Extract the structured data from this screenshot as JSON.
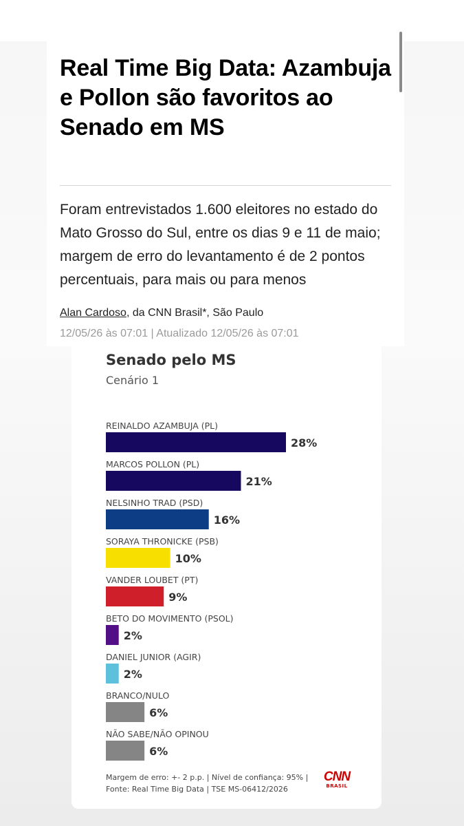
{
  "article": {
    "headline": "Real Time Big Data: Azambuja e Pollon são favoritos ao Senado em MS",
    "summary": "Foram entrevistados 1.600 eleitores no estado do Mato Grosso do Sul, entre os dias 9 e 11 de maio; margem de erro do levantamento é de 2 pontos percentuais, para mais ou para menos",
    "author": "Alan Cardoso",
    "byline_rest": ", da CNN Brasil*, São Paulo",
    "timestamp": "12/05/26 às 07:01 | Atualizado 12/05/26 às 07:01"
  },
  "chart": {
    "title": "Senado pelo MS",
    "subtitle": "Cenário 1",
    "footer": "Margem de erro: +- 2 p.p. | Nível de confiança: 95% | Fonte: Real Time Big Data | TSE MS-06412/2026",
    "logo_text": "CNN",
    "logo_subtext": "BRASIL"
  },
  "chart_data": {
    "type": "bar",
    "orientation": "horizontal",
    "title": "Senado pelo MS",
    "subtitle": "Cenário 1",
    "categories": [
      "REINALDO AZAMBUJA (PL)",
      "MARCOS POLLON (PL)",
      "NELSINHO TRAD (PSD)",
      "SORAYA THRONICKE (PSB)",
      "VANDER LOUBET (PT)",
      "BETO DO MOVIMENTO (PSOL)",
      "DANIEL JUNIOR (AGIR)",
      "BRANCO/NULO",
      "NÃO SABE/NÃO OPINOU"
    ],
    "values": [
      28,
      21,
      16,
      10,
      9,
      2,
      2,
      6,
      6
    ],
    "value_labels": [
      "28%",
      "21%",
      "16%",
      "10%",
      "9%",
      "2%",
      "2%",
      "6%",
      "6%"
    ],
    "colors": [
      "#16085e",
      "#16085e",
      "#0c3d85",
      "#f7e000",
      "#cf1f2a",
      "#530f86",
      "#5ec1dc",
      "#858585",
      "#858585"
    ],
    "xlim": [
      0,
      28
    ],
    "grid": false,
    "legend": "none"
  }
}
